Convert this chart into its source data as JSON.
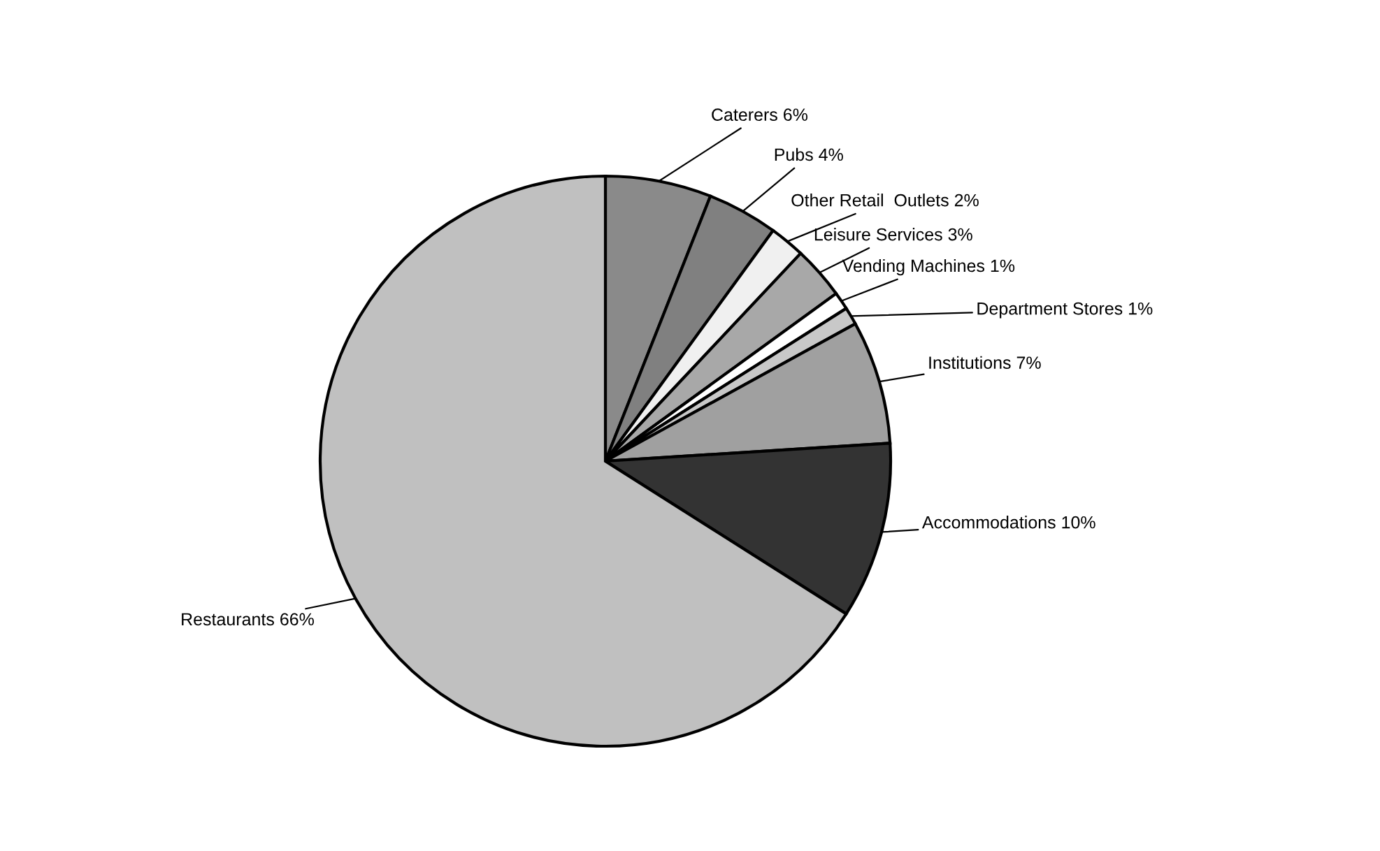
{
  "chart_data": {
    "type": "pie",
    "categories": [
      "Caterers",
      "Pubs",
      "Other Retail  Outlets",
      "Leisure Services",
      "Vending Machines",
      "Department Stores",
      "Institutions",
      "Accommodations",
      "Restaurants"
    ],
    "values": [
      6,
      4,
      2,
      3,
      1,
      1,
      7,
      10,
      66
    ],
    "value_labels": [
      "6%",
      "4%",
      "2%",
      "3%",
      "1%",
      "1%",
      "7%",
      "10%",
      "66%"
    ],
    "colors": [
      "#8a8a8a",
      "#808080",
      "#f0f0f0",
      "#a8a8a8",
      "#ffffff",
      "#c8c8c8",
      "#a0a0a0",
      "#333333",
      "#c0c0c0"
    ]
  }
}
